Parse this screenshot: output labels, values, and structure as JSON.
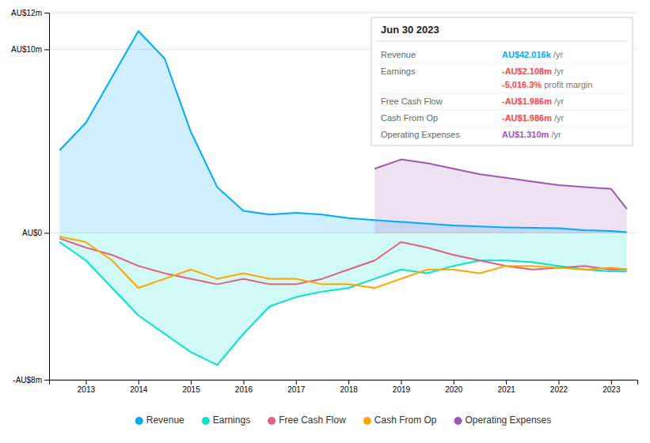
{
  "chart_data": {
    "type": "line",
    "x": [
      2012.5,
      2013,
      2013.5,
      2014,
      2014.5,
      2015,
      2015.5,
      2016,
      2016.5,
      2017,
      2017.5,
      2018,
      2018.5,
      2019,
      2019.5,
      2020,
      2020.5,
      2021,
      2021.5,
      2022,
      2022.5,
      2023,
      2023.3
    ],
    "xlim": [
      2012.3,
      2023.5
    ],
    "xticks": [
      2013,
      2014,
      2015,
      2016,
      2017,
      2018,
      2019,
      2020,
      2021,
      2022,
      2023
    ],
    "ylim": [
      -8,
      12
    ],
    "yticks": [
      {
        "value": -8,
        "label": "-AU$8m"
      },
      {
        "value": 0,
        "label": "AU$0"
      },
      {
        "value": 10,
        "label": "AU$10m"
      },
      {
        "value": 12,
        "label": "AU$12m"
      }
    ],
    "grid": true,
    "legend": "bottom",
    "series": [
      {
        "name": "Revenue",
        "color": "#00aaff",
        "type": "area",
        "values": [
          4.5,
          6.0,
          8.5,
          11.0,
          9.5,
          5.5,
          2.5,
          1.2,
          1.0,
          1.1,
          1.0,
          0.8,
          0.7,
          0.6,
          0.5,
          0.4,
          0.35,
          0.3,
          0.28,
          0.25,
          0.15,
          0.1,
          0.042
        ]
      },
      {
        "name": "Earnings",
        "color": "#00e5cc",
        "type": "area",
        "values": [
          -0.5,
          -1.5,
          -3.0,
          -4.5,
          -5.5,
          -6.5,
          -7.2,
          -5.5,
          -4.0,
          -3.5,
          -3.2,
          -3.0,
          -2.5,
          -2.0,
          -2.2,
          -1.8,
          -1.5,
          -1.5,
          -1.6,
          -1.8,
          -2.0,
          -2.1,
          -2.108
        ]
      },
      {
        "name": "Free Cash Flow",
        "color": "#e06080",
        "type": "line",
        "values": [
          -0.3,
          -0.8,
          -1.2,
          -1.8,
          -2.2,
          -2.5,
          -2.8,
          -2.5,
          -2.8,
          -2.8,
          -2.5,
          -2.0,
          -1.5,
          -0.5,
          -0.8,
          -1.2,
          -1.5,
          -1.8,
          -2.0,
          -1.9,
          -1.8,
          -2.0,
          -1.986
        ]
      },
      {
        "name": "Cash From Op",
        "color": "#ffa500",
        "type": "line",
        "values": [
          -0.2,
          -0.5,
          -1.5,
          -3.0,
          -2.5,
          -2.0,
          -2.5,
          -2.2,
          -2.5,
          -2.5,
          -2.8,
          -2.8,
          -3.0,
          -2.5,
          -2.0,
          -2.0,
          -2.2,
          -1.8,
          -1.8,
          -1.9,
          -2.0,
          -1.9,
          -1.986
        ]
      },
      {
        "name": "Operating Expenses",
        "color": "#9b59b6",
        "type": "area",
        "values": [
          null,
          null,
          null,
          null,
          null,
          null,
          null,
          null,
          null,
          null,
          null,
          null,
          3.5,
          4.0,
          3.8,
          3.5,
          3.2,
          3.0,
          2.8,
          2.6,
          2.5,
          2.4,
          1.31
        ]
      }
    ],
    "table": {
      "title": "Jun 30 2023",
      "rows": [
        {
          "label": "Revenue",
          "value": "AU$42.016k",
          "suffix": " /yr",
          "color": "#00aaff"
        },
        {
          "label": "Earnings",
          "value": "-AU$2.108m",
          "suffix": " /yr",
          "color": "#ff4444",
          "sub_value": "-5,016.3%",
          "sub_label": " profit margin"
        },
        {
          "label": "Free Cash Flow",
          "value": "-AU$1.986m",
          "suffix": " /yr",
          "color": "#ff4444"
        },
        {
          "label": "Cash From Op",
          "value": "-AU$1.986m",
          "suffix": " /yr",
          "color": "#ff4444"
        },
        {
          "label": "Operating Expenses",
          "value": "AU$1.310m",
          "suffix": " /yr",
          "color": "#9b59b6"
        }
      ]
    }
  }
}
